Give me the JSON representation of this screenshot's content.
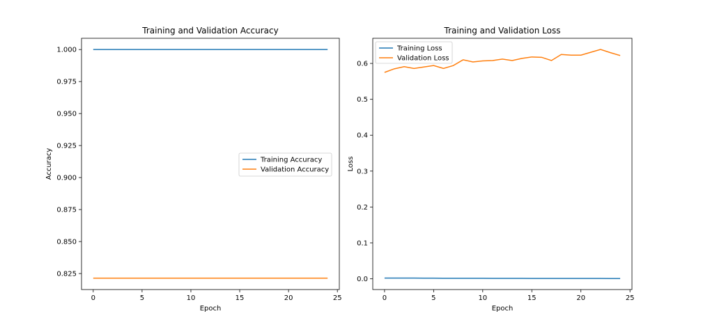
{
  "chart_data": [
    {
      "type": "line",
      "title": "Training and Validation Accuracy",
      "xlabel": "Epoch",
      "ylabel": "Accuracy",
      "xlim": [
        -1.2,
        25.2
      ],
      "ylim": [
        0.8125,
        1.0088
      ],
      "xticks": [
        0,
        5,
        10,
        15,
        20,
        25
      ],
      "yticks": [
        0.825,
        0.85,
        0.875,
        0.9,
        0.925,
        0.95,
        0.975,
        1.0
      ],
      "ytick_labels": [
        "0.825",
        "0.850",
        "0.875",
        "0.900",
        "0.925",
        "0.950",
        "0.975",
        "1.000"
      ],
      "grid": false,
      "legend": "center-right",
      "x": [
        0,
        1,
        2,
        3,
        4,
        5,
        6,
        7,
        8,
        9,
        10,
        11,
        12,
        13,
        14,
        15,
        16,
        17,
        18,
        19,
        20,
        21,
        22,
        23,
        24
      ],
      "series": [
        {
          "name": "Training Accuracy",
          "color": "#1f77b4",
          "values": [
            1,
            1,
            1,
            1,
            1,
            1,
            1,
            1,
            1,
            1,
            1,
            1,
            1,
            1,
            1,
            1,
            1,
            1,
            1,
            1,
            1,
            1,
            1,
            1,
            1
          ]
        },
        {
          "name": "Validation Accuracy",
          "color": "#ff7f0e",
          "values": [
            0.8214,
            0.8214,
            0.8214,
            0.8214,
            0.8214,
            0.8214,
            0.8214,
            0.8214,
            0.8214,
            0.8214,
            0.8214,
            0.8214,
            0.8214,
            0.8214,
            0.8214,
            0.8214,
            0.8214,
            0.8214,
            0.8214,
            0.8214,
            0.8214,
            0.8214,
            0.8214,
            0.8214,
            0.8214
          ]
        }
      ]
    },
    {
      "type": "line",
      "title": "Training and Validation Loss",
      "xlabel": "Epoch",
      "ylabel": "Loss",
      "xlim": [
        -1.2,
        25.2
      ],
      "ylim": [
        -0.03,
        0.67
      ],
      "xticks": [
        0,
        5,
        10,
        15,
        20,
        25
      ],
      "yticks": [
        0.0,
        0.1,
        0.2,
        0.3,
        0.4,
        0.5,
        0.6
      ],
      "ytick_labels": [
        "0.0",
        "0.1",
        "0.2",
        "0.3",
        "0.4",
        "0.5",
        "0.6"
      ],
      "grid": false,
      "legend": "upper-left",
      "x": [
        0,
        1,
        2,
        3,
        4,
        5,
        6,
        7,
        8,
        9,
        10,
        11,
        12,
        13,
        14,
        15,
        16,
        17,
        18,
        19,
        20,
        21,
        22,
        23,
        24
      ],
      "series": [
        {
          "name": "Training Loss",
          "color": "#1f77b4",
          "values": [
            0.002,
            0.002,
            0.002,
            0.002,
            0.0018,
            0.0017,
            0.0016,
            0.0015,
            0.0015,
            0.0014,
            0.0014,
            0.0013,
            0.0013,
            0.0012,
            0.0012,
            0.0011,
            0.0011,
            0.001,
            0.001,
            0.001,
            0.0009,
            0.0009,
            0.0009,
            0.0008,
            0.0008
          ]
        },
        {
          "name": "Validation Loss",
          "color": "#ff7f0e",
          "values": [
            0.575,
            0.585,
            0.591,
            0.586,
            0.59,
            0.594,
            0.586,
            0.594,
            0.61,
            0.604,
            0.607,
            0.608,
            0.612,
            0.608,
            0.614,
            0.618,
            0.617,
            0.608,
            0.625,
            0.623,
            0.623,
            0.631,
            0.639,
            0.63,
            0.622
          ]
        }
      ]
    }
  ]
}
